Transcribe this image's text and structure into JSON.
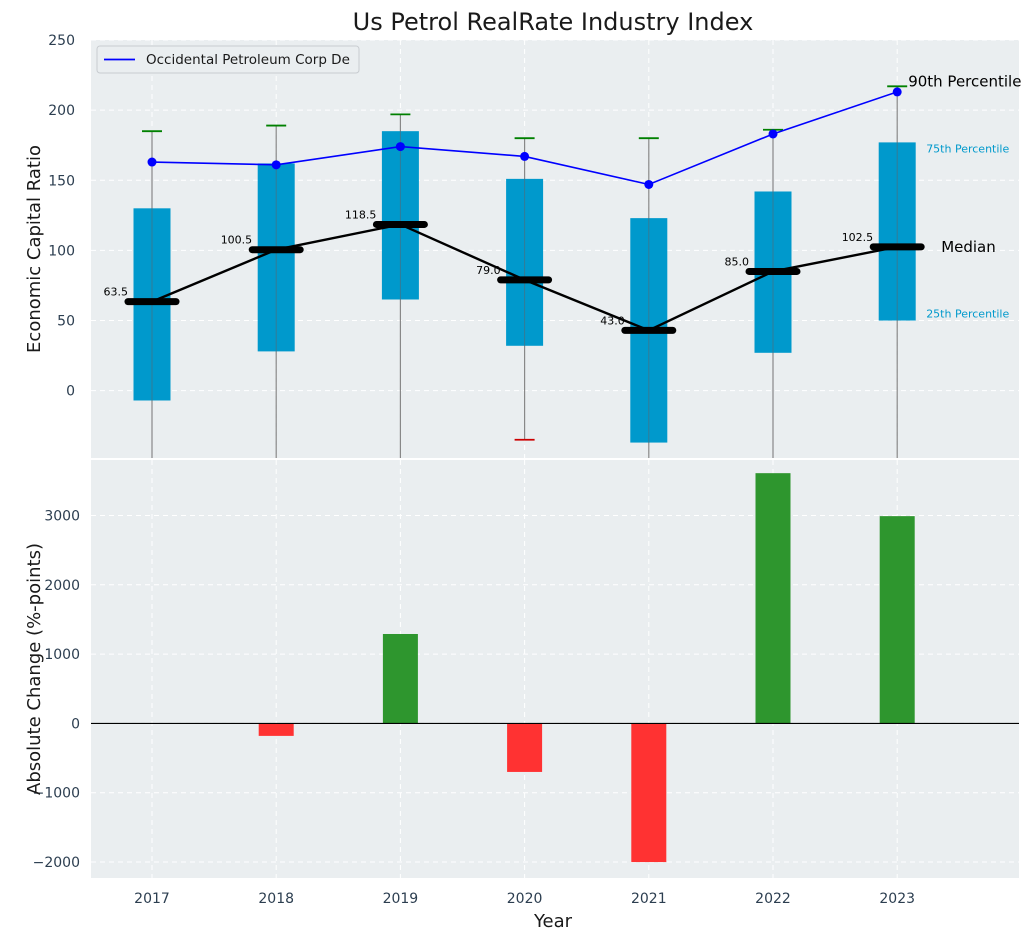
{
  "chart_data": [
    {
      "type": "box",
      "title": "Us Petrol RealRate Industry Index",
      "ylabel": "Economic Capital Ratio",
      "ylim": [
        -48,
        250
      ],
      "yticks": [
        0,
        50,
        100,
        150,
        200,
        250
      ],
      "categories": [
        "2017",
        "2018",
        "2019",
        "2020",
        "2021",
        "2022",
        "2023"
      ],
      "percentiles": {
        "p90": [
          185,
          189,
          197,
          180,
          180,
          186,
          217
        ],
        "p75": [
          130,
          162,
          185,
          151,
          123,
          142,
          177
        ],
        "p50": [
          63.5,
          100.5,
          118.5,
          79.0,
          43.0,
          85.0,
          102.5
        ],
        "p25": [
          -7,
          28,
          65,
          32,
          -37,
          27,
          50
        ],
        "p10": [
          null,
          null,
          null,
          -35,
          null,
          null,
          null
        ]
      },
      "median_labels": [
        "63.5",
        "100.5",
        "118.5",
        "79.0",
        "43.0",
        "85.0",
        "102.5"
      ],
      "series": [
        {
          "name": "Occidental Petroleum Corp De",
          "values": [
            163,
            161,
            174,
            167,
            147,
            183,
            213
          ]
        }
      ],
      "annotations": {
        "p90": "90th Percentile",
        "p75": "75th Percentile",
        "median": "Median",
        "p25": "25th Percentile"
      },
      "legend": "top-left",
      "grid": true,
      "colors": {
        "box": "#0099cc",
        "company_line": "#0000ff",
        "median_line": "#000000",
        "p90_cap": "#008000",
        "p10_cap": "#cc0000",
        "whisker": "#888888",
        "background": "#eaeef0",
        "grid": "#ffffff"
      }
    },
    {
      "type": "bar",
      "ylabel": "Absolute Change (%-points)",
      "xlabel": "Year",
      "ylim": [
        -2230,
        3800
      ],
      "yticks": [
        -2000,
        -1000,
        0,
        1000,
        2000,
        3000
      ],
      "ytick_labels": [
        "−2000",
        "−1000",
        "0",
        "1000",
        "2000",
        "3000"
      ],
      "categories": [
        "2017",
        "2018",
        "2019",
        "2020",
        "2021",
        "2022",
        "2023"
      ],
      "values": [
        0,
        -180,
        1290,
        -700,
        -2000,
        3610,
        2990
      ],
      "grid": true,
      "colors": {
        "positive": "#2e962e",
        "negative": "#ff3232",
        "zero_line": "#000000",
        "background": "#eaeef0"
      }
    }
  ]
}
